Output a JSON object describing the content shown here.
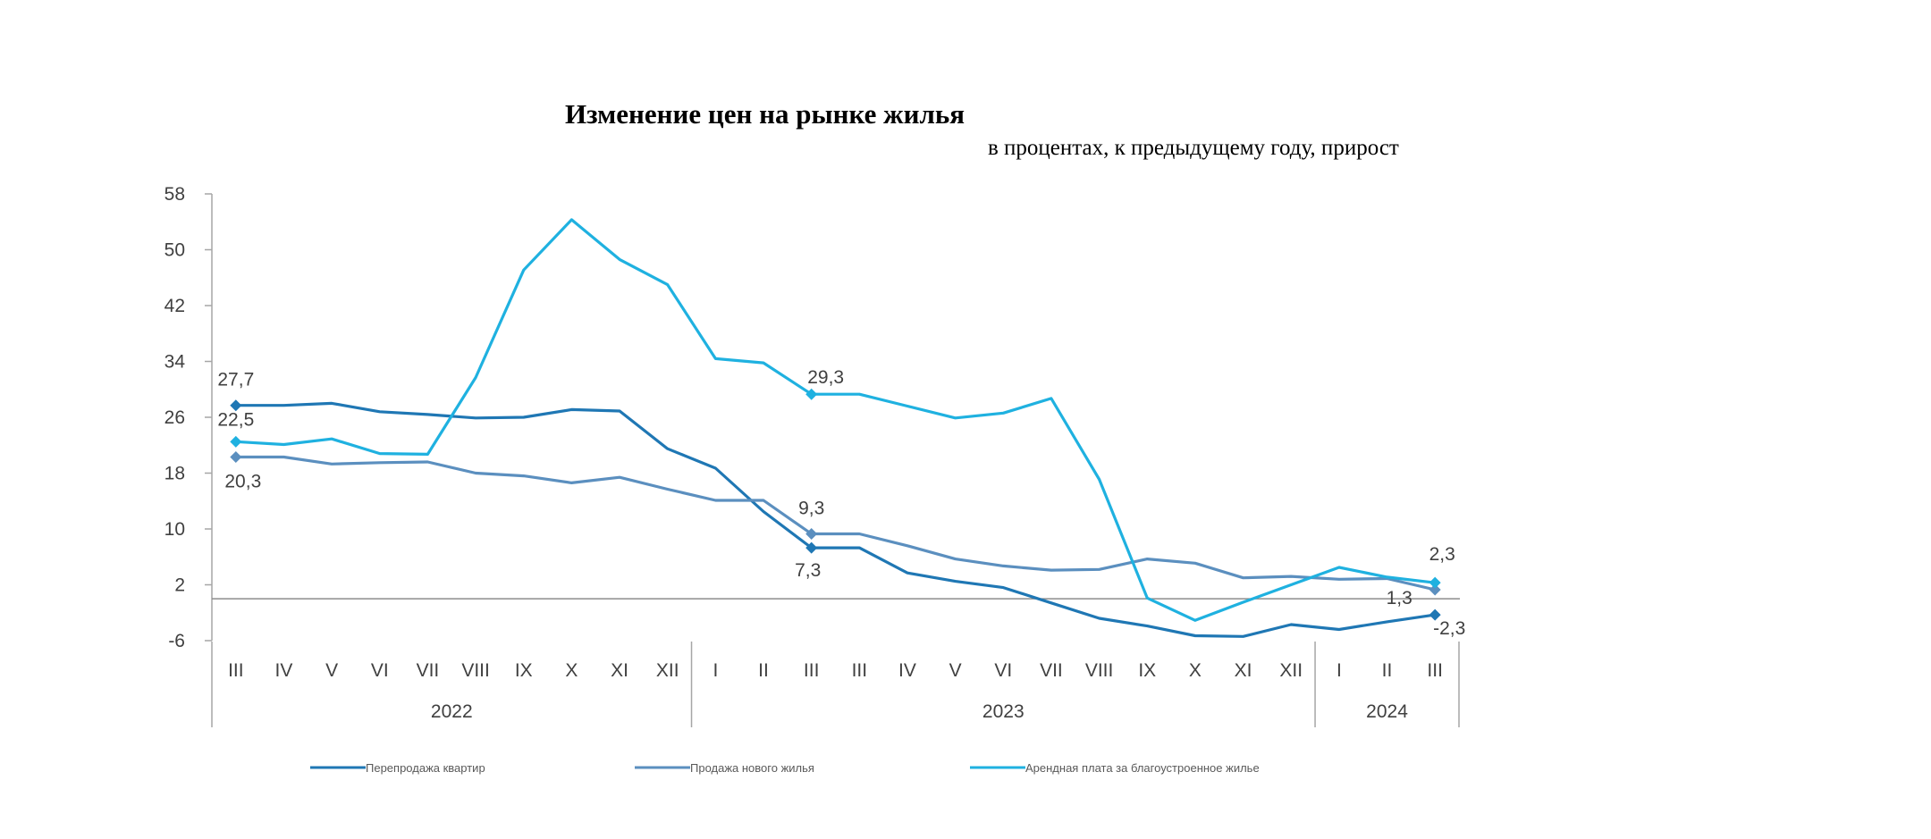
{
  "chart_data": {
    "type": "line",
    "title": "Изменение цен на рынке жилья",
    "subtitle": "в процентах, к предыдущему году, прирост",
    "ylim": [
      -6,
      58
    ],
    "yticks": [
      "58",
      "50",
      "42",
      "34",
      "26",
      "18",
      "10",
      "2",
      "-6"
    ],
    "zero_line": 0,
    "grid": false,
    "categories": [
      "III",
      "IV",
      "V",
      "VI",
      "VII",
      "VIII",
      "IX",
      "X",
      "XI",
      "XII",
      "I",
      "II",
      "III",
      "III",
      "IV",
      "V",
      "VI",
      "VII",
      "VIII",
      "IX",
      "X",
      "XI",
      "XII",
      "I",
      "II",
      "III"
    ],
    "groups": [
      {
        "label": "2022",
        "count": 10
      },
      {
        "label": "2023",
        "count": 13
      },
      {
        "label": "2024",
        "count": 3
      }
    ],
    "series": [
      {
        "name": "Перепродажа квартир",
        "color": "#1f77b4",
        "values": [
          27.7,
          27.7,
          28.0,
          26.8,
          26.4,
          25.9,
          26.0,
          27.1,
          26.9,
          21.5,
          18.7,
          12.5,
          7.3,
          7.3,
          3.7,
          2.5,
          1.6,
          -0.6,
          -2.8,
          -3.9,
          -5.3,
          -5.4,
          -3.7,
          -4.4,
          -3.3,
          -2.3
        ],
        "labels": [
          {
            "index": 0,
            "text": "27,7"
          },
          {
            "index": 12,
            "text": "7,3"
          },
          {
            "index": 25,
            "text": "-2,3"
          }
        ]
      },
      {
        "name": "Продажа нового жилья",
        "color": "#5b8fbf",
        "values": [
          20.3,
          20.3,
          19.3,
          19.5,
          19.6,
          18.0,
          17.6,
          16.6,
          17.4,
          15.7,
          14.1,
          14.1,
          9.3,
          9.3,
          7.6,
          5.7,
          4.7,
          4.1,
          4.2,
          5.7,
          5.1,
          3.0,
          3.2,
          2.8,
          2.9,
          1.3
        ],
        "labels": [
          {
            "index": 0,
            "text": "20,3"
          },
          {
            "index": 12,
            "text": "9,3"
          },
          {
            "index": 25,
            "text": "1,3"
          }
        ]
      },
      {
        "name": "Арендная плата за благоустроенное жилье",
        "color": "#1fb1e0",
        "values": [
          22.5,
          22.1,
          22.9,
          20.8,
          20.7,
          31.7,
          47.1,
          54.3,
          48.6,
          45.0,
          34.4,
          33.8,
          29.3,
          29.3,
          27.6,
          25.9,
          26.6,
          28.7,
          17.1,
          0.1,
          -3.1,
          -0.5,
          2.0,
          4.5,
          3.1,
          2.3
        ],
        "labels": [
          {
            "index": 0,
            "text": "22,5"
          },
          {
            "index": 12,
            "text": "29,3"
          },
          {
            "index": 25,
            "text": "2,3"
          }
        ]
      }
    ],
    "legend_position": "bottom"
  }
}
